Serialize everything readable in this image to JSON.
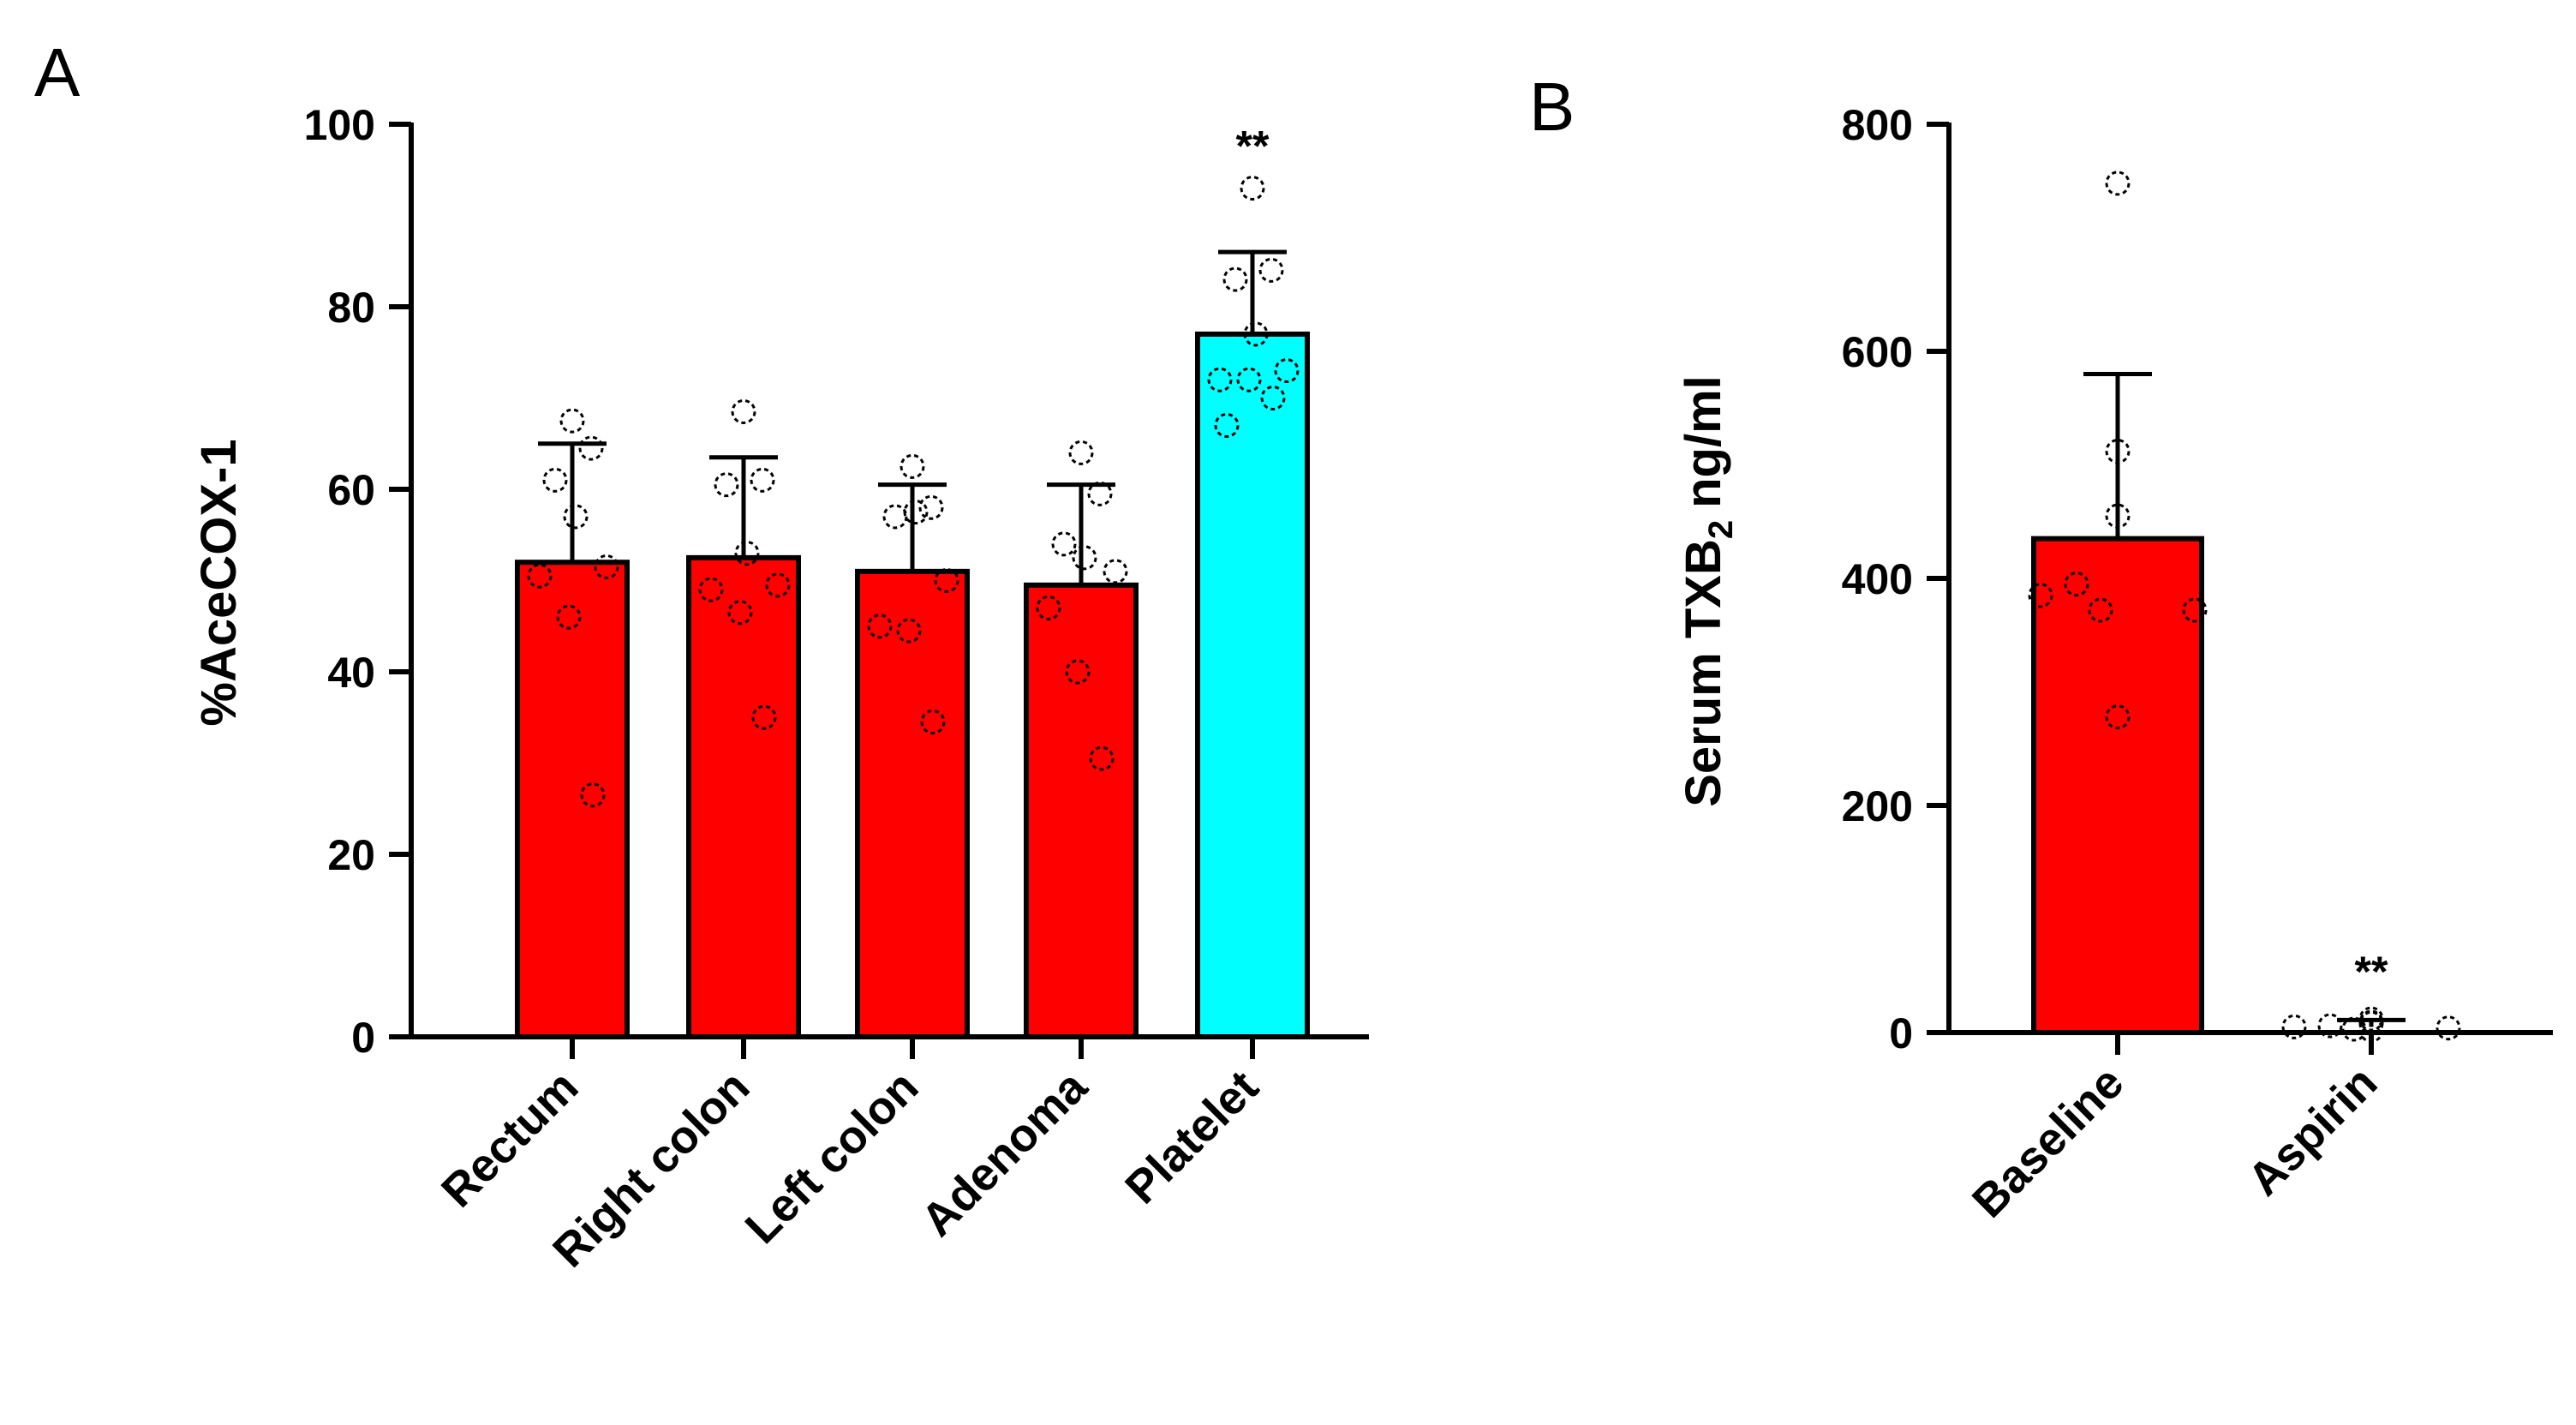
{
  "chart_data": [
    {
      "type": "bar",
      "panel_label": "A",
      "title": "",
      "xlabel": "",
      "ylabel": "%AceCOX-1",
      "ylim": [
        0,
        100
      ],
      "yticks": [
        "0",
        "20",
        "40",
        "60",
        "80",
        "100"
      ],
      "grid": false,
      "categories": [
        "Rectum",
        "Right colon",
        "Left colon",
        "Adenoma",
        "Platelet"
      ],
      "values": [
        52,
        52.5,
        51,
        49.5,
        77
      ],
      "errors": [
        13,
        11,
        9.5,
        11,
        9
      ],
      "bar_colors": [
        "#ff0000",
        "#ff0000",
        "#ff0000",
        "#ff0000",
        "#00ffff"
      ],
      "significance": [
        "",
        "",
        "",
        "",
        "**"
      ],
      "points": [
        [
          67.5,
          64.5,
          61,
          57,
          51.5,
          50.5,
          46,
          26.5
        ],
        [
          68.5,
          61,
          60.5,
          53,
          49.5,
          49,
          46.5,
          35
        ],
        [
          62.5,
          58,
          57,
          57.5,
          50,
          45,
          44.5,
          34.5
        ],
        [
          64,
          59.5,
          54,
          52.5,
          51,
          47,
          40,
          30.5
        ],
        [
          93,
          84,
          83,
          77,
          73,
          72,
          72,
          70,
          67
        ]
      ]
    },
    {
      "type": "bar",
      "panel_label": "B",
      "title": "",
      "xlabel": "",
      "ylabel": "Serum TXB",
      "ylabel_subscript": "2",
      "ylabel_unit": "ng/ml",
      "ylim": [
        0,
        800
      ],
      "yticks": [
        "0",
        "200",
        "400",
        "600",
        "800"
      ],
      "grid": false,
      "categories": [
        "Baseline",
        "Aspirin"
      ],
      "values": [
        435,
        5
      ],
      "errors": [
        145,
        6
      ],
      "bar_colors": [
        "#ff0000",
        "#ffffff"
      ],
      "significance": [
        "",
        "**"
      ],
      "points": [
        [
          748,
          512,
          455,
          395,
          385,
          372,
          372,
          278
        ],
        [
          12,
          9,
          8,
          6,
          5,
          4,
          3,
          2
        ]
      ]
    }
  ]
}
